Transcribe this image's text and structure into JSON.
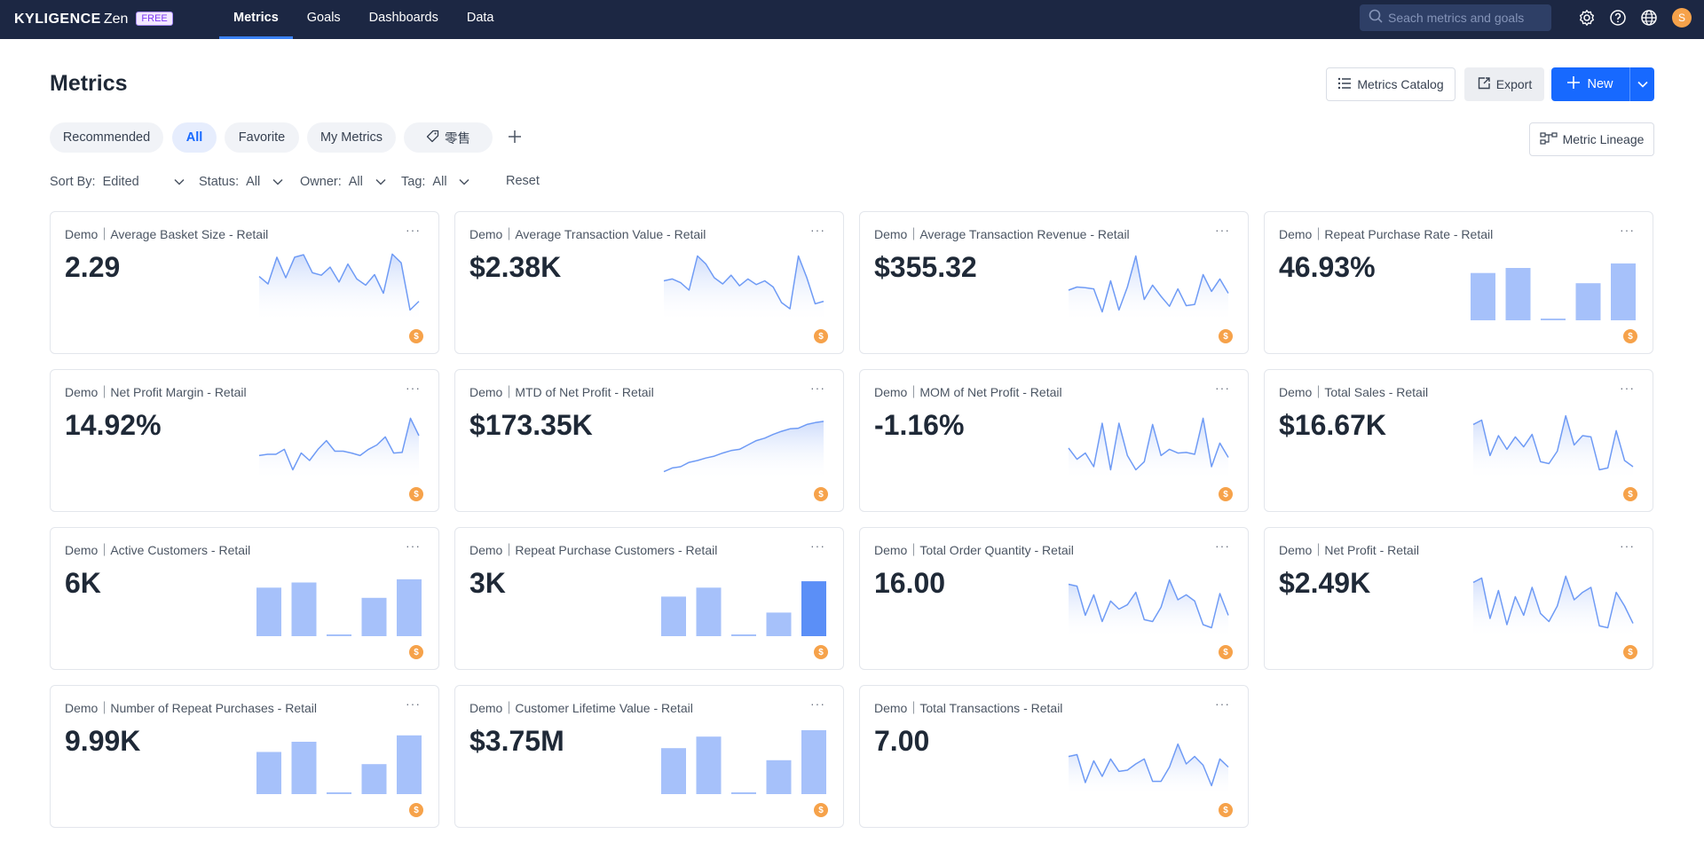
{
  "app": {
    "brand": "KYLIGENCE",
    "product": "Zen",
    "plan_badge": "FREE"
  },
  "nav": {
    "items": [
      {
        "label": "Metrics",
        "active": true
      },
      {
        "label": "Goals",
        "active": false
      },
      {
        "label": "Dashboards",
        "active": false
      },
      {
        "label": "Data",
        "active": false
      }
    ]
  },
  "search": {
    "placeholder": "Seach metrics and goals"
  },
  "user": {
    "avatar_initial": "S"
  },
  "header": {
    "title": "Metrics",
    "catalog_label": "Metrics Catalog",
    "export_label": "Export",
    "new_label": "New",
    "lineage_label": "Metric Lineage"
  },
  "tabs": [
    {
      "label": "Recommended",
      "active": false
    },
    {
      "label": "All",
      "active": true
    },
    {
      "label": "Favorite",
      "active": false
    },
    {
      "label": "My Metrics",
      "active": false
    },
    {
      "label": "零售",
      "active": false,
      "icon": "tag-icon"
    }
  ],
  "filters": {
    "sort_label": "Sort By:",
    "sort_value": "Edited",
    "status_label": "Status:",
    "status_value": "All",
    "owner_label": "Owner:",
    "owner_value": "All",
    "tag_label": "Tag:",
    "tag_value": "All",
    "reset_label": "Reset"
  },
  "colors": {
    "nav_bg": "#1c2743",
    "accent": "#1769ff",
    "spark_line": "#6f9bf5",
    "bar": "#a6c1fa",
    "bar_highlight": "#5b8ff7",
    "currency_badge": "#f6a24a"
  },
  "cards": [
    {
      "title": "Demo｜Average Basket Size - Retail",
      "value": "2.29",
      "badge": "$",
      "chart_type": "area",
      "series": [
        0.62,
        0.5,
        0.93,
        0.6,
        0.93,
        0.97,
        0.68,
        0.64,
        0.77,
        0.53,
        0.82,
        0.58,
        0.48,
        0.65,
        0.35,
        0.98,
        0.84,
        0.08,
        0.22
      ]
    },
    {
      "title": "Demo｜Average Transaction Value - Retail",
      "value": "$2.38K",
      "badge": "$",
      "chart_type": "area",
      "series": [
        0.55,
        0.58,
        0.52,
        0.4,
        0.95,
        0.82,
        0.6,
        0.5,
        0.64,
        0.47,
        0.58,
        0.49,
        0.55,
        0.45,
        0.2,
        0.1,
        0.95,
        0.6,
        0.18,
        0.22
      ]
    },
    {
      "title": "Demo｜Average Transaction Revenue - Retail",
      "value": "$355.32",
      "badge": "$",
      "chart_type": "area",
      "series": [
        0.4,
        0.45,
        0.44,
        0.42,
        0.05,
        0.55,
        0.08,
        0.45,
        0.95,
        0.25,
        0.48,
        0.3,
        0.14,
        0.42,
        0.15,
        0.17,
        0.65,
        0.38,
        0.58,
        0.35
      ]
    },
    {
      "title": "Demo｜Repeat Purchase Rate - Retail",
      "value": "46.93%",
      "badge": "$",
      "chart_type": "bar",
      "series": [
        0.74,
        0.82,
        0.02,
        0.58,
        0.89
      ],
      "highlight": -1
    },
    {
      "title": "Demo｜Net Profit Margin - Retail",
      "value": "14.92%",
      "badge": "$",
      "chart_type": "area",
      "series": [
        0.28,
        0.3,
        0.3,
        0.38,
        0.05,
        0.32,
        0.2,
        0.38,
        0.52,
        0.35,
        0.35,
        0.32,
        0.28,
        0.38,
        0.45,
        0.58,
        0.32,
        0.33,
        0.88,
        0.6
      ]
    },
    {
      "title": "Demo｜MTD of Net Profit - Retail",
      "value": "$173.35K",
      "badge": "$",
      "chart_type": "area",
      "series": [
        0.02,
        0.08,
        0.1,
        0.17,
        0.2,
        0.24,
        0.27,
        0.32,
        0.36,
        0.38,
        0.45,
        0.52,
        0.56,
        0.62,
        0.67,
        0.71,
        0.72,
        0.78,
        0.81,
        0.83
      ]
    },
    {
      "title": "Demo｜MOM of Net Profit - Retail",
      "value": "-1.16%",
      "badge": "$",
      "chart_type": "area",
      "series": [
        0.4,
        0.22,
        0.32,
        0.1,
        0.8,
        0.05,
        0.8,
        0.28,
        0.05,
        0.18,
        0.78,
        0.28,
        0.38,
        0.32,
        0.33,
        0.3,
        0.88,
        0.1,
        0.48,
        0.25
      ]
    },
    {
      "title": "Demo｜Total Sales - Retail",
      "value": "$16.67K",
      "badge": "$",
      "chart_type": "area",
      "series": [
        0.78,
        0.85,
        0.28,
        0.6,
        0.38,
        0.58,
        0.42,
        0.62,
        0.18,
        0.15,
        0.35,
        0.92,
        0.45,
        0.6,
        0.58,
        0.05,
        0.08,
        0.68,
        0.2,
        0.1
      ]
    },
    {
      "title": "Demo｜Active Customers - Retail",
      "value": "6K",
      "badge": "$",
      "chart_type": "bar",
      "series": [
        0.76,
        0.84,
        0.02,
        0.6,
        0.89
      ],
      "highlight": -1
    },
    {
      "title": "Demo｜Repeat Purchase Customers - Retail",
      "value": "3K",
      "badge": "$",
      "chart_type": "bar",
      "series": [
        0.62,
        0.76,
        0.02,
        0.37,
        0.86
      ],
      "highlight": 4
    },
    {
      "title": "Demo｜Total Order Quantity - Retail",
      "value": "16.00",
      "badge": "$",
      "chart_type": "area",
      "series": [
        0.75,
        0.72,
        0.25,
        0.58,
        0.15,
        0.48,
        0.35,
        0.42,
        0.62,
        0.18,
        0.15,
        0.38,
        0.82,
        0.5,
        0.58,
        0.48,
        0.1,
        0.05,
        0.6,
        0.25
      ]
    },
    {
      "title": "Demo｜Net Profit - Retail",
      "value": "$2.49K",
      "badge": "$",
      "chart_type": "area",
      "series": [
        0.78,
        0.85,
        0.2,
        0.65,
        0.1,
        0.55,
        0.25,
        0.7,
        0.28,
        0.15,
        0.4,
        0.88,
        0.5,
        0.62,
        0.7,
        0.08,
        0.05,
        0.62,
        0.4,
        0.12
      ]
    },
    {
      "title": "Demo｜Number of Repeat Purchases - Retail",
      "value": "9.99K",
      "badge": "$",
      "chart_type": "bar",
      "series": [
        0.66,
        0.82,
        0.02,
        0.47,
        0.92
      ],
      "highlight": -1
    },
    {
      "title": "Demo｜Customer Lifetime Value - Retail",
      "value": "$3.75M",
      "badge": "$",
      "chart_type": "bar",
      "series": [
        0.72,
        0.9,
        0.02,
        0.53,
        1.0
      ],
      "highlight": -1
    },
    {
      "title": "Demo｜Total Transactions - Retail",
      "value": "7.00",
      "badge": "$",
      "chart_type": "area",
      "series": [
        0.52,
        0.55,
        0.1,
        0.45,
        0.2,
        0.48,
        0.28,
        0.3,
        0.4,
        0.48,
        0.12,
        0.12,
        0.35,
        0.72,
        0.4,
        0.52,
        0.38,
        0.05,
        0.48,
        0.35
      ]
    }
  ]
}
